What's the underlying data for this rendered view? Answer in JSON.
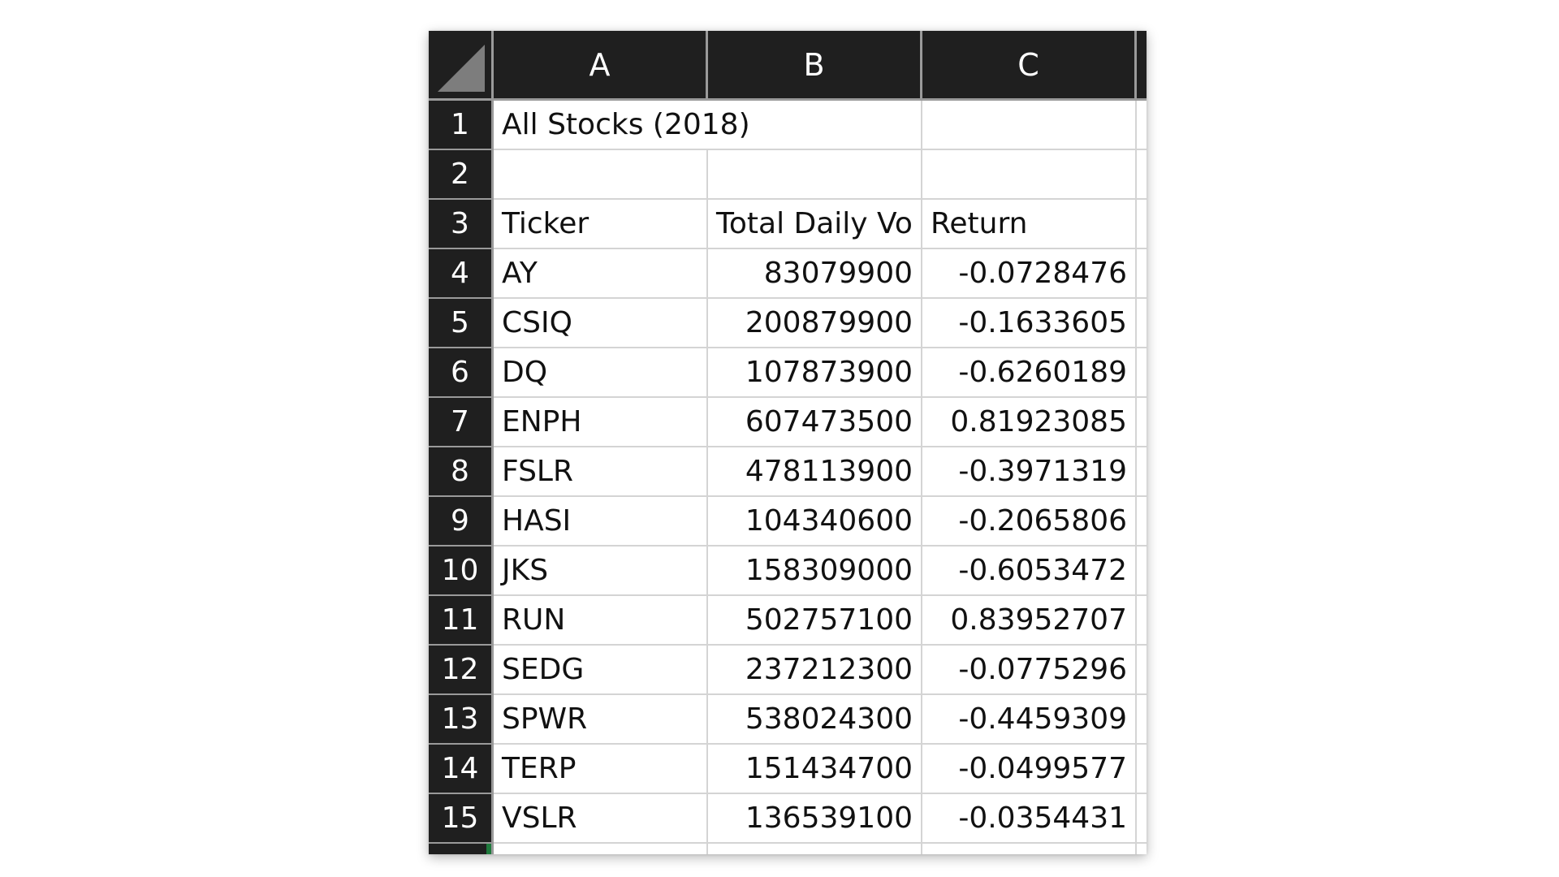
{
  "columns": [
    "A",
    "B",
    "C"
  ],
  "rows": [
    {
      "num": "1",
      "a": "All Stocks (2018)",
      "b": "",
      "c": ""
    },
    {
      "num": "2",
      "a": "",
      "b": "",
      "c": ""
    },
    {
      "num": "3",
      "a": "Ticker",
      "b": "Total Daily Vo",
      "c": "Return"
    },
    {
      "num": "4",
      "a": "AY",
      "b": "83079900",
      "c": "-0.0728476"
    },
    {
      "num": "5",
      "a": "CSIQ",
      "b": "200879900",
      "c": "-0.1633605"
    },
    {
      "num": "6",
      "a": "DQ",
      "b": "107873900",
      "c": "-0.6260189"
    },
    {
      "num": "7",
      "a": "ENPH",
      "b": "607473500",
      "c": "0.81923085"
    },
    {
      "num": "8",
      "a": "FSLR",
      "b": "478113900",
      "c": "-0.3971319"
    },
    {
      "num": "9",
      "a": "HASI",
      "b": "104340600",
      "c": "-0.2065806"
    },
    {
      "num": "10",
      "a": "JKS",
      "b": "158309000",
      "c": "-0.6053472"
    },
    {
      "num": "11",
      "a": "RUN",
      "b": "502757100",
      "c": "0.83952707"
    },
    {
      "num": "12",
      "a": "SEDG",
      "b": "237212300",
      "c": "-0.0775296"
    },
    {
      "num": "13",
      "a": "SPWR",
      "b": "538024300",
      "c": "-0.4459309"
    },
    {
      "num": "14",
      "a": "TERP",
      "b": "151434700",
      "c": "-0.0499577"
    },
    {
      "num": "15",
      "a": "VSLR",
      "b": "136539100",
      "c": "-0.0354431"
    }
  ],
  "colors": {
    "header_bg": "#1f1f1f",
    "header_text": "#ffffff",
    "gridline": "#d4d4d4",
    "selection_accent": "#1e7a3c"
  }
}
